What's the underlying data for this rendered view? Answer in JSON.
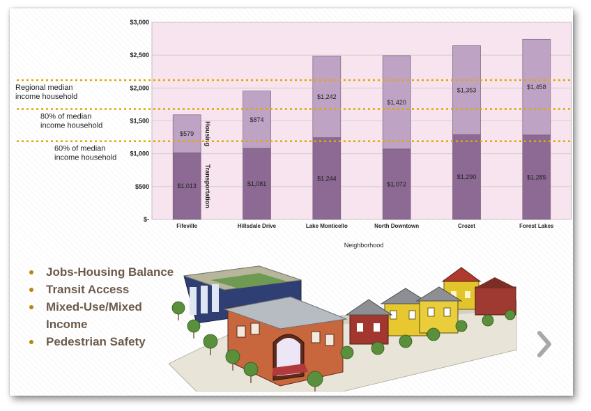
{
  "chart_data": {
    "type": "bar",
    "stacked": true,
    "xlabel": "Neighborhood",
    "ylabel": "",
    "ylim": [
      0,
      3000
    ],
    "y_ticks": [
      "$-",
      "$500",
      "$1,000",
      "$1,500",
      "$2,000",
      "$2,500",
      "$3,000"
    ],
    "grid": true,
    "categories": [
      "Fifeville",
      "Hillsdale Drive",
      "Lake Monticello",
      "North Downtown",
      "Crozet",
      "Forest Lakes"
    ],
    "series": [
      {
        "name": "Transportation",
        "values": [
          1013,
          1081,
          1244,
          1072,
          1290,
          1285
        ],
        "labels": [
          "$1,013",
          "$1,081",
          "$1,244",
          "$1,072",
          "$1,290",
          "$1,285"
        ],
        "color": "#8c6a93"
      },
      {
        "name": "Housing",
        "values": [
          579,
          874,
          1242,
          1420,
          1353,
          1458
        ],
        "labels": [
          "$579",
          "$874",
          "$1,242",
          "$1,420",
          "$1,353",
          "$1,458"
        ],
        "color": "#bfa3c4"
      }
    ],
    "reference_lines": [
      {
        "label_lines": [
          "Regional median",
          "income household"
        ],
        "value": 2120,
        "color": "#e0a800"
      },
      {
        "label_lines": [
          "80% of median",
          "income household"
        ],
        "value": 1680,
        "color": "#e0a800"
      },
      {
        "label_lines": [
          "60% of median",
          "income household"
        ],
        "value": 1190,
        "color": "#e0a800"
      }
    ],
    "plot_background": "#f7e4ee"
  },
  "bullets": [
    "Jobs-Housing Balance",
    "Transit Access",
    "Mixed-Use/Mixed Income",
    "Pedestrian Safety"
  ]
}
